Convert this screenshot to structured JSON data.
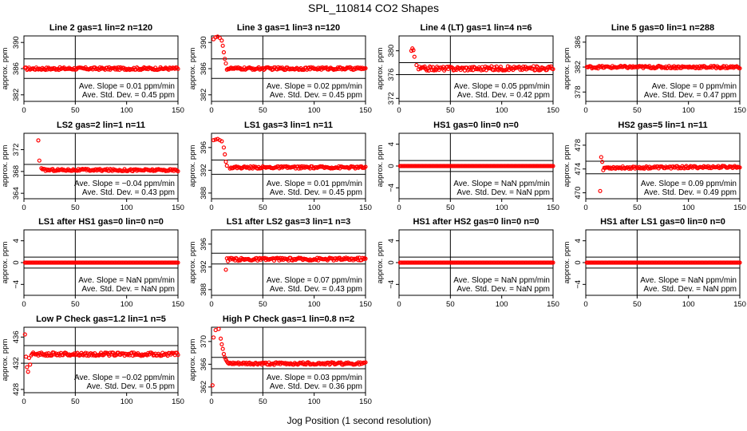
{
  "title": "SPL_110814  CO2 Shapes",
  "xlabel": "Jog Position (1 second resolution)",
  "colors": {
    "points": "#ff0000",
    "lines": "#000000"
  },
  "chart_data": [
    {
      "type": "scatter",
      "title": "Line 2 gas=1 lin=2 n=120",
      "ylabel": "approx. ppm",
      "xlim": [
        0,
        150
      ],
      "ylim": [
        381,
        391
      ],
      "yticks": [
        382,
        386,
        390
      ],
      "xticks": [
        0,
        50,
        100,
        150
      ],
      "hlines": [
        387.5,
        384.5
      ],
      "vline": 50,
      "slope_text": "Ave. Slope =  0.01  ppm/min",
      "std_text": "Ave. Std. Dev. =  0.45  ppm",
      "baseline": 386,
      "slope": 0.0001,
      "noise": 0.2,
      "start_x": 1,
      "pre": []
    },
    {
      "type": "scatter",
      "title": "Line 3 gas=1 lin=3 n=120",
      "ylabel": "approx. ppm",
      "xlim": [
        0,
        150
      ],
      "ylim": [
        381,
        391
      ],
      "yticks": [
        382,
        386,
        390
      ],
      "xticks": [
        0,
        50,
        100,
        150
      ],
      "hlines": [
        387.5,
        384.5
      ],
      "vline": 50,
      "slope_text": "Ave. Slope =  0.02  ppm/min",
      "std_text": "Ave. Std. Dev. =  0.45  ppm",
      "baseline": 386,
      "slope": 0.0002,
      "noise": 0.2,
      "start_x": 15,
      "pre": [
        [
          2,
          390.5
        ],
        [
          4,
          390.8
        ],
        [
          6,
          390.9
        ],
        [
          8,
          390.7
        ],
        [
          10,
          390.3
        ],
        [
          11,
          389.5
        ],
        [
          12,
          388.5
        ],
        [
          13,
          387.5
        ],
        [
          14,
          386.8
        ]
      ]
    },
    {
      "type": "scatter",
      "title": "Line 4 (LT) gas=1 lin=4 n=6",
      "ylabel": "approx. ppm",
      "xlim": [
        0,
        150
      ],
      "ylim": [
        371.5,
        382.5
      ],
      "yticks": [
        372,
        376,
        380
      ],
      "xticks": [
        0,
        50,
        100,
        150
      ],
      "hlines": [
        378,
        376
      ],
      "vline": 50,
      "slope_text": "Ave. Slope =  0.05  ppm/min",
      "std_text": "Ave. Std. Dev. =  0.42  ppm",
      "baseline": 377,
      "slope": 0.0005,
      "noise": 0.35,
      "start_x": 19,
      "pre": [
        [
          12,
          380
        ],
        [
          13,
          380.4
        ],
        [
          14,
          380.1
        ],
        [
          15,
          379
        ],
        [
          17,
          377.6
        ]
      ]
    },
    {
      "type": "scatter",
      "title": "Line 5 gas=0 lin=1 n=288",
      "ylabel": "approx. ppm",
      "xlim": [
        0,
        150
      ],
      "ylim": [
        376.5,
        387
      ],
      "yticks": [
        378,
        382,
        386
      ],
      "xticks": [
        0,
        50,
        100,
        150
      ],
      "hlines": [
        383.3,
        380.7
      ],
      "vline": 50,
      "slope_text": "Ave. Slope =  0  ppm/min",
      "std_text": "Ave. Std. Dev. =  0.47  ppm",
      "baseline": 382,
      "slope": 0,
      "noise": 0.2,
      "start_x": 1,
      "pre": []
    },
    {
      "type": "scatter",
      "title": "LS2 gas=2 lin=1 n=11",
      "ylabel": "approx. ppm",
      "xlim": [
        0,
        150
      ],
      "ylim": [
        363,
        375
      ],
      "yticks": [
        364,
        368,
        372
      ],
      "xticks": [
        0,
        50,
        100,
        150
      ],
      "hlines": [
        369.3,
        367.3
      ],
      "vline": 50,
      "slope_text": "Ave. Slope = −0.04  ppm/min",
      "std_text": "Ave. Std. Dev. =  0.43  ppm",
      "baseline": 368.3,
      "slope": -0.0004,
      "noise": 0.2,
      "start_x": 18,
      "pre": [
        [
          14,
          373.7
        ],
        [
          15,
          370
        ],
        [
          17,
          368.6
        ]
      ]
    },
    {
      "type": "scatter",
      "title": "LS1 gas=3 lin=1 n=11",
      "ylabel": "approx. ppm",
      "xlim": [
        0,
        150
      ],
      "ylim": [
        387,
        398.5
      ],
      "yticks": [
        388,
        392,
        396
      ],
      "xticks": [
        0,
        50,
        100,
        150
      ],
      "hlines": [
        393.8,
        391.3
      ],
      "vline": 50,
      "slope_text": "Ave. Slope =  0.01  ppm/min",
      "std_text": "Ave. Std. Dev. =  0.45  ppm",
      "baseline": 392.5,
      "slope": 0.0001,
      "noise": 0.2,
      "start_x": 18,
      "pre": [
        [
          2,
          397.3
        ],
        [
          4,
          397.4
        ],
        [
          6,
          397.5
        ],
        [
          8,
          397.3
        ],
        [
          10,
          397.1
        ],
        [
          12,
          396
        ],
        [
          13,
          394.8
        ],
        [
          14,
          393.5
        ],
        [
          15,
          392.8
        ]
      ]
    },
    {
      "type": "scatter",
      "title": "HS1 gas=0 lin=0 n=0",
      "ylabel": "approx. ppm",
      "xlim": [
        0,
        150
      ],
      "ylim": [
        -6,
        6
      ],
      "yticks": [
        -4,
        0,
        4
      ],
      "xticks": [
        0,
        50,
        100,
        150
      ],
      "hlines": [
        1,
        -1
      ],
      "vline": 50,
      "slope_text": "Ave. Slope =  NaN  ppm/min",
      "std_text": "Ave. Std. Dev. =  NaN  ppm",
      "baseline": 0,
      "slope": 0,
      "noise": 0,
      "start_x": 1,
      "pre": []
    },
    {
      "type": "scatter",
      "title": "HS2 gas=5 lin=1 n=11",
      "ylabel": "approx. ppm",
      "xlim": [
        0,
        150
      ],
      "ylim": [
        469,
        480
      ],
      "yticks": [
        470,
        474,
        478
      ],
      "xticks": [
        0,
        50,
        100,
        150
      ],
      "hlines": [
        475.3,
        473.2
      ],
      "vline": 50,
      "slope_text": "Ave. Slope =  0.09  ppm/min",
      "std_text": "Ave. Std. Dev. =  0.49  ppm",
      "baseline": 474.2,
      "slope": 0.001,
      "noise": 0.2,
      "start_x": 18,
      "pre": [
        [
          14,
          470.3
        ],
        [
          15,
          476
        ],
        [
          16,
          475.2
        ],
        [
          17,
          473.8
        ]
      ]
    },
    {
      "type": "scatter",
      "title": "LS1 after HS1 gas=0 lin=0 n=0",
      "ylabel": "approx. ppm",
      "xlim": [
        0,
        150
      ],
      "ylim": [
        -6,
        6
      ],
      "yticks": [
        -4,
        0,
        4
      ],
      "xticks": [
        0,
        50,
        100,
        150
      ],
      "hlines": [
        1,
        -1
      ],
      "vline": 50,
      "slope_text": "Ave. Slope =  NaN  ppm/min",
      "std_text": "Ave. Std. Dev. =  NaN  ppm",
      "baseline": 0,
      "slope": 0,
      "noise": 0,
      "start_x": 1,
      "pre": []
    },
    {
      "type": "scatter",
      "title": "LS1 after LS2 gas=3 lin=1 n=3",
      "ylabel": "approx. ppm",
      "xlim": [
        0,
        150
      ],
      "ylim": [
        387,
        398.5
      ],
      "yticks": [
        388,
        392,
        396
      ],
      "xticks": [
        0,
        50,
        100,
        150
      ],
      "hlines": [
        394.4,
        392.5
      ],
      "vline": 50,
      "slope_text": "Ave. Slope =  0.07  ppm/min",
      "std_text": "Ave. Std. Dev. =  0.43  ppm",
      "baseline": 393.3,
      "slope": 0.0007,
      "noise": 0.25,
      "start_x": 17,
      "pre": [
        [
          14,
          391.5
        ],
        [
          15,
          393.5
        ],
        [
          16,
          393
        ]
      ]
    },
    {
      "type": "scatter",
      "title": "HS1 after HS2 gas=0 lin=0 n=0",
      "ylabel": "approx. ppm",
      "xlim": [
        0,
        150
      ],
      "ylim": [
        -6,
        6
      ],
      "yticks": [
        -4,
        0,
        4
      ],
      "xticks": [
        0,
        50,
        100,
        150
      ],
      "hlines": [
        1,
        -1
      ],
      "vline": 50,
      "slope_text": "Ave. Slope =  NaN  ppm/min",
      "std_text": "Ave. Std. Dev. =  NaN  ppm",
      "baseline": 0,
      "slope": 0,
      "noise": 0,
      "start_x": 1,
      "pre": []
    },
    {
      "type": "scatter",
      "title": "HS1 after LS1 gas=0 lin=0 n=0",
      "ylabel": "approx. ppm",
      "xlim": [
        0,
        150
      ],
      "ylim": [
        -6,
        6
      ],
      "yticks": [
        -4,
        0,
        4
      ],
      "xticks": [
        0,
        50,
        100,
        150
      ],
      "hlines": [
        1,
        -1
      ],
      "vline": 50,
      "slope_text": "Ave. Slope =  NaN  ppm/min",
      "std_text": "Ave. Std. Dev. =  NaN  ppm",
      "baseline": 0,
      "slope": 0,
      "noise": 0,
      "start_x": 1,
      "pre": []
    },
    {
      "type": "scatter",
      "title": "Low P Check gas=1.2 lin=1 n=5",
      "ylabel": "approx. ppm",
      "xlim": [
        0,
        150
      ],
      "ylim": [
        427.5,
        437.5
      ],
      "yticks": [
        428,
        432,
        436
      ],
      "xticks": [
        0,
        50,
        100,
        150
      ],
      "hlines": [
        434.7,
        432
      ],
      "vline": 50,
      "slope_text": "Ave. Slope = −0.02  ppm/min",
      "std_text": "Ave. Std. Dev. =  0.5  ppm",
      "baseline": 433.4,
      "slope": -0.0002,
      "noise": 0.25,
      "start_x": 8,
      "pre": [
        [
          1,
          436.4
        ],
        [
          2,
          433
        ],
        [
          3,
          431.4
        ],
        [
          4,
          430.7
        ],
        [
          5,
          432.8
        ],
        [
          6,
          431.8
        ],
        [
          7,
          433.2
        ]
      ]
    },
    {
      "type": "scatter",
      "title": "High P Check gas=1 lin=0.8 n=2",
      "ylabel": "approx. ppm",
      "xlim": [
        0,
        150
      ],
      "ylim": [
        361,
        372.5
      ],
      "yticks": [
        362,
        366,
        370
      ],
      "xticks": [
        0,
        50,
        100,
        150
      ],
      "hlines": [
        367.2,
        365.2
      ],
      "vline": 50,
      "slope_text": "Ave. Slope =  0.03  ppm/min",
      "std_text": "Ave. Std. Dev. =  0.36  ppm",
      "baseline": 366.1,
      "slope": 0.0003,
      "noise": 0.22,
      "start_x": 16,
      "pre": [
        [
          1,
          362.3
        ],
        [
          2,
          370.7
        ],
        [
          4,
          372
        ],
        [
          7,
          372.2
        ],
        [
          9,
          370.5
        ],
        [
          10,
          369.5
        ],
        [
          11,
          368.7
        ],
        [
          12,
          367.8
        ],
        [
          13,
          367.2
        ],
        [
          14,
          366.8
        ],
        [
          15,
          366.5
        ]
      ]
    }
  ]
}
